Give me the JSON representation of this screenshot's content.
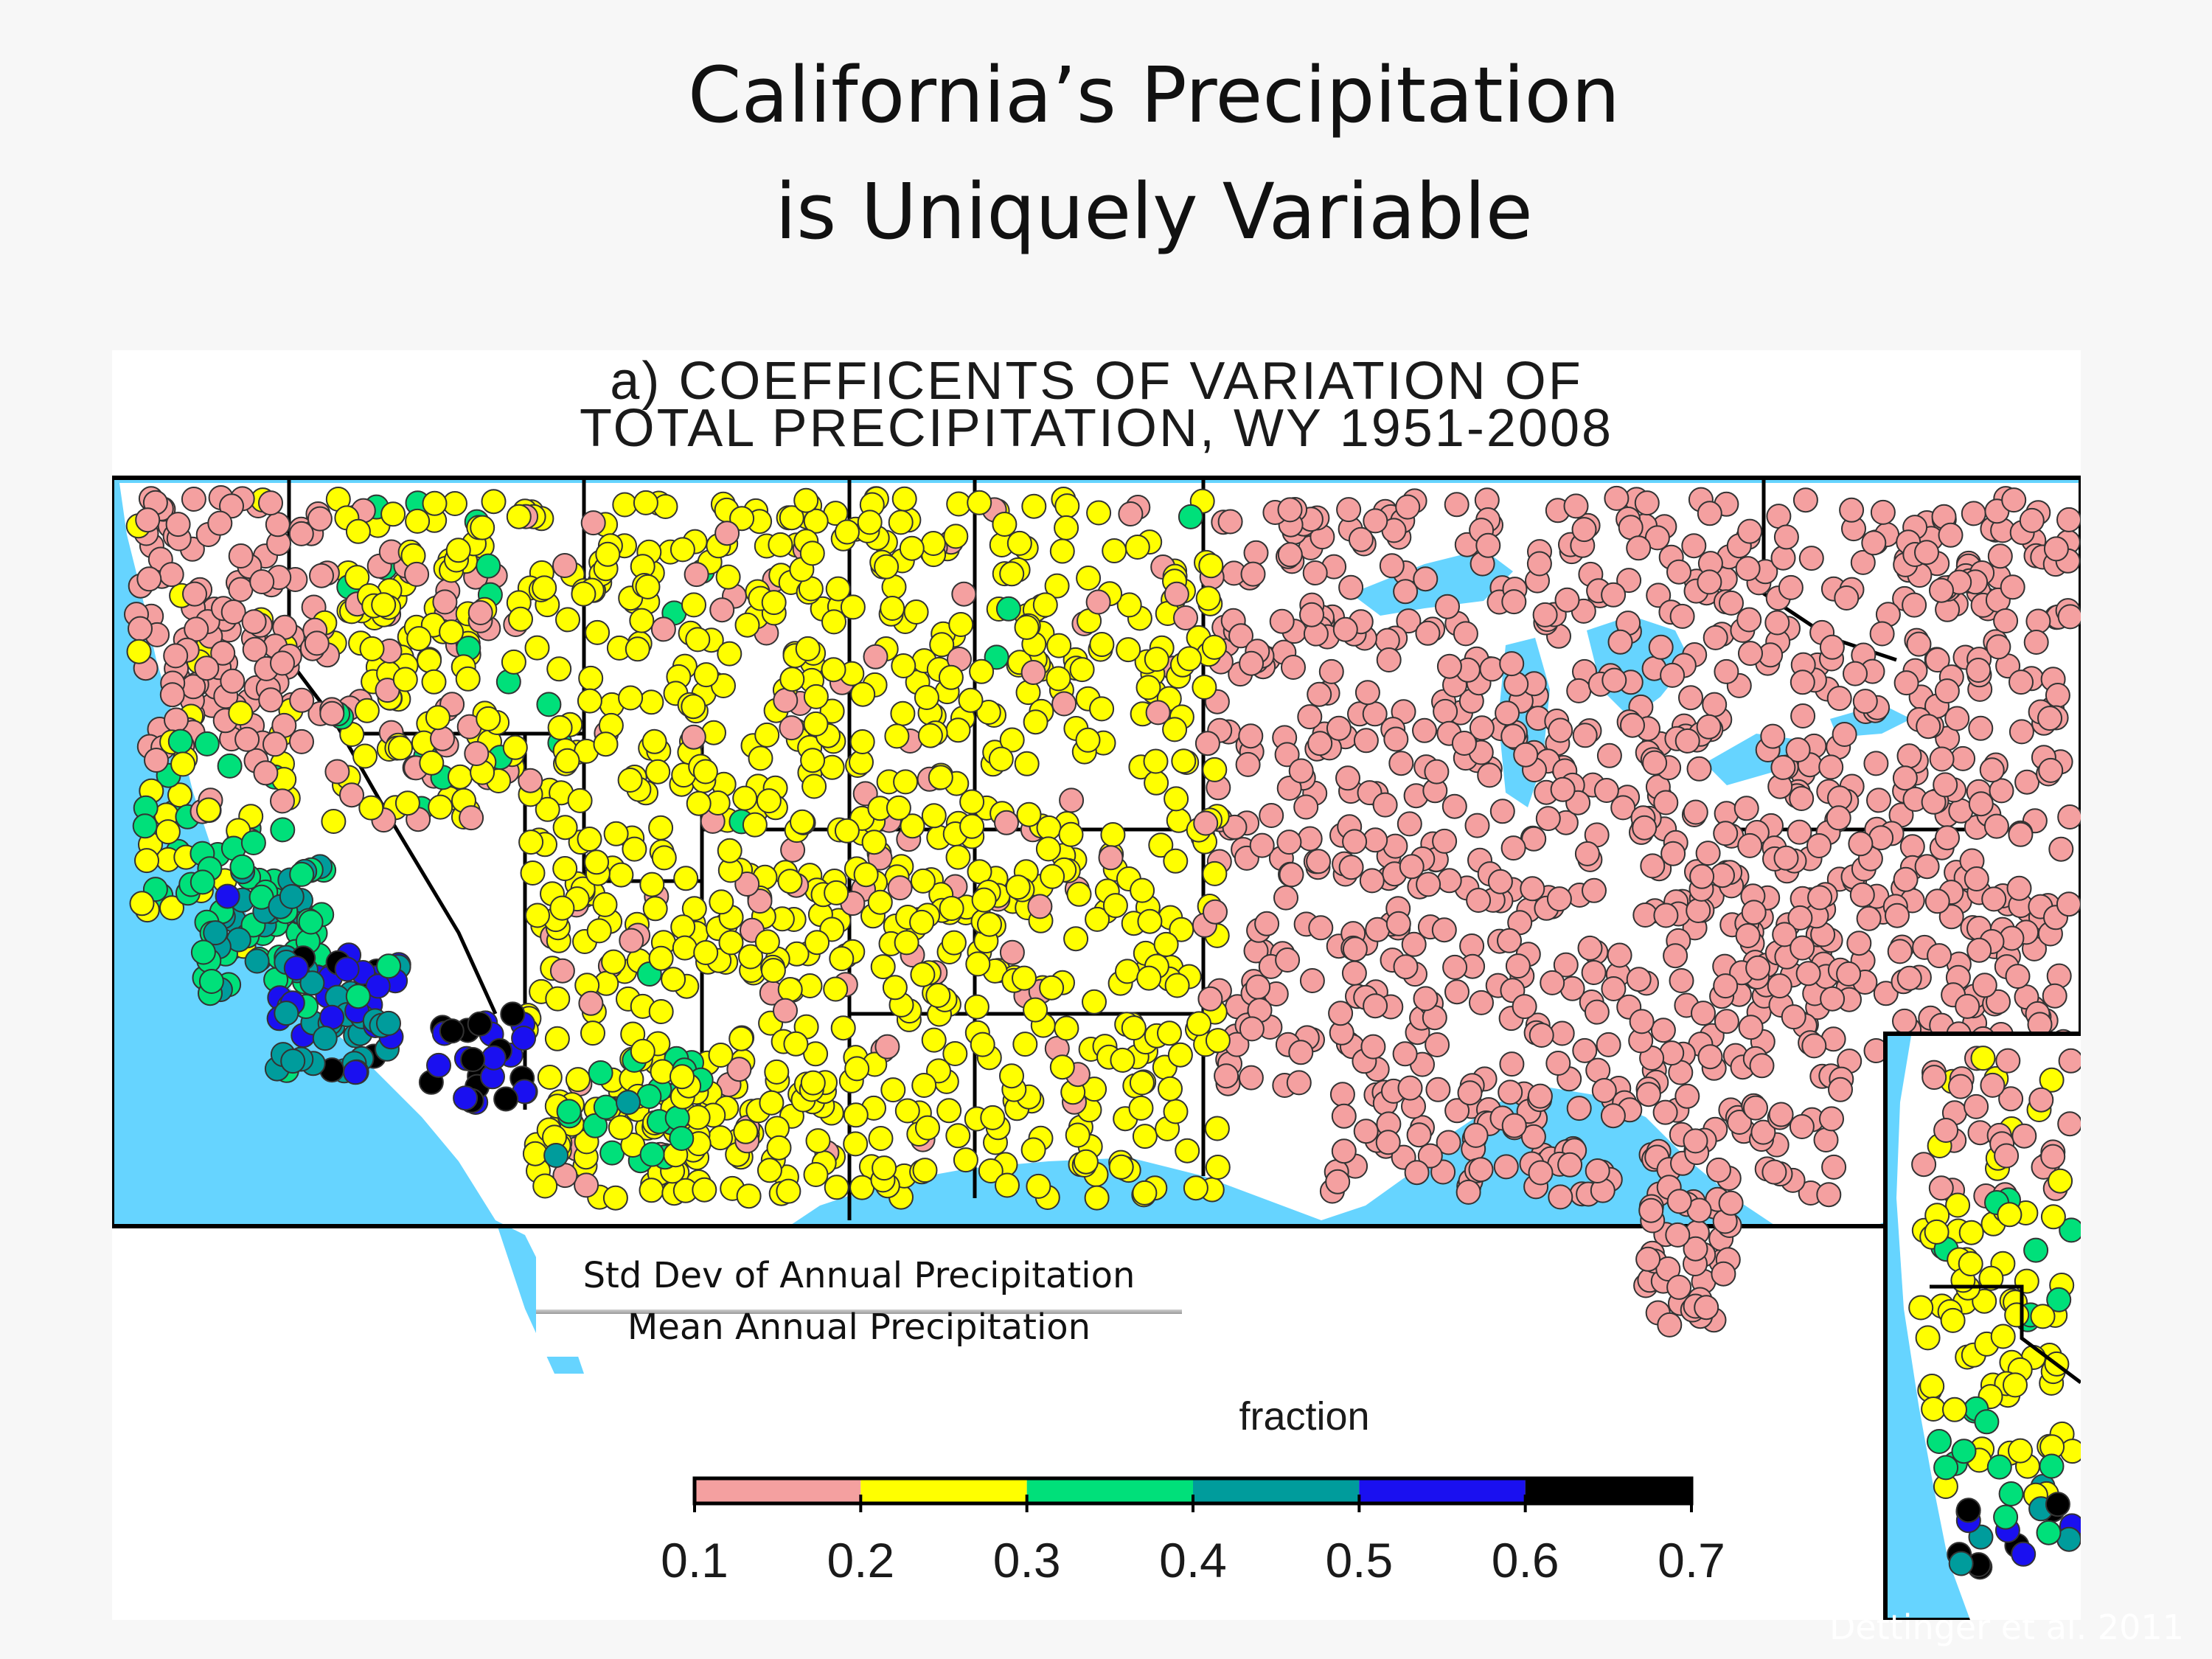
{
  "slide": {
    "title_line1": "California’s Precipitation",
    "title_line2": "is Uniquely Variable",
    "citation": "Dettinger et al. 2011"
  },
  "figure": {
    "title_line1": "a) COEFFICENTS OF VARIATION OF",
    "title_line2": "TOTAL PRECIPITATION, WY 1951-2008",
    "formula_numerator": "Std Dev of Annual Precipitation",
    "formula_denominator": "Mean Annual Precipitation"
  },
  "legend": {
    "unit_label": "fraction",
    "ticks": [
      "0.1",
      "0.2",
      "0.3",
      "0.4",
      "0.5",
      "0.6",
      "0.7"
    ],
    "bins": [
      {
        "min": 0.1,
        "max": 0.2,
        "color": "#f4a0a0"
      },
      {
        "min": 0.2,
        "max": 0.3,
        "color": "#ffff00"
      },
      {
        "min": 0.3,
        "max": 0.4,
        "color": "#00e07a"
      },
      {
        "min": 0.4,
        "max": 0.5,
        "color": "#009c9c"
      },
      {
        "min": 0.5,
        "max": 0.6,
        "color": "#1a10f0"
      },
      {
        "min": 0.6,
        "max": 0.7,
        "color": "#000000"
      }
    ]
  },
  "map_colors": {
    "ocean": "#66d4ff",
    "land": "#ffffff",
    "borders": "#000000"
  }
}
